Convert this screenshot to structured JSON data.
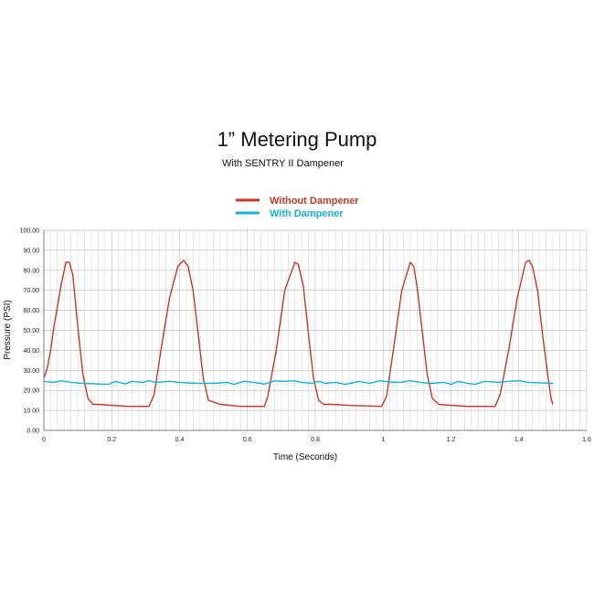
{
  "chart_data": {
    "type": "line",
    "title": "1” Metering Pump",
    "subtitle": "With SENTRY II Dampener",
    "xlabel": "Time (Seconds)",
    "ylabel": "Pressure (PSI)",
    "xlim": [
      0,
      1.6
    ],
    "ylim": [
      0,
      100
    ],
    "x_ticks": [
      "0",
      "0.2",
      "0.4",
      "0.6",
      "0.8",
      "1",
      "1.2",
      "1.4",
      "1.6"
    ],
    "y_ticks": [
      "0.00",
      "10.00",
      "20.00",
      "30.00",
      "40.00",
      "50.00",
      "60.00",
      "70.00",
      "80.00",
      "90.00",
      "100.00"
    ],
    "grid": true,
    "legend_position": "top-center",
    "series": [
      {
        "name": "Without Dampener",
        "color": "#c0392b",
        "x": [
          0,
          0.01,
          0.02,
          0.03,
          0.05,
          0.065,
          0.075,
          0.085,
          0.1,
          0.115,
          0.13,
          0.145,
          0.16,
          0.2,
          0.25,
          0.31,
          0.325,
          0.345,
          0.37,
          0.395,
          0.412,
          0.425,
          0.44,
          0.455,
          0.47,
          0.485,
          0.52,
          0.58,
          0.65,
          0.66,
          0.685,
          0.71,
          0.74,
          0.75,
          0.765,
          0.78,
          0.795,
          0.81,
          0.825,
          0.85,
          0.9,
          0.995,
          1.01,
          1.03,
          1.055,
          1.08,
          1.09,
          1.1,
          1.115,
          1.13,
          1.145,
          1.165,
          1.2,
          1.25,
          1.33,
          1.345,
          1.37,
          1.395,
          1.42,
          1.43,
          1.44,
          1.455,
          1.47,
          1.485,
          1.495,
          1.5
        ],
        "values": [
          26,
          31,
          40,
          52,
          72,
          84,
          84,
          78,
          52,
          28,
          16,
          13,
          13,
          12.5,
          12,
          12,
          18,
          40,
          66,
          82,
          85,
          82,
          70,
          48,
          26,
          15,
          13,
          12,
          12,
          17,
          40,
          70,
          84,
          83,
          72,
          48,
          26,
          15,
          13,
          13,
          12.5,
          12,
          17,
          40,
          70,
          84,
          82,
          72,
          50,
          28,
          16,
          13,
          12.5,
          12,
          12,
          18,
          40,
          66,
          84,
          85,
          82,
          70,
          48,
          28,
          16,
          13
        ]
      },
      {
        "name": "With Dampener",
        "color": "#1ab0d0",
        "x": [
          0,
          0.03,
          0.05,
          0.08,
          0.12,
          0.19,
          0.21,
          0.24,
          0.26,
          0.29,
          0.31,
          0.33,
          0.37,
          0.4,
          0.45,
          0.5,
          0.54,
          0.56,
          0.59,
          0.62,
          0.65,
          0.68,
          0.71,
          0.74,
          0.76,
          0.79,
          0.81,
          0.83,
          0.86,
          0.89,
          0.93,
          0.96,
          0.99,
          1.02,
          1.05,
          1.08,
          1.11,
          1.14,
          1.18,
          1.2,
          1.22,
          1.25,
          1.27,
          1.3,
          1.34,
          1.37,
          1.4,
          1.43,
          1.46,
          1.5
        ],
        "values": [
          24.5,
          24,
          24.8,
          24,
          23.5,
          23,
          24.5,
          23.2,
          24.5,
          24,
          24.8,
          24,
          24.5,
          24,
          23.5,
          23.5,
          24,
          23,
          24.5,
          24,
          23.2,
          24.8,
          24.5,
          24.8,
          24,
          23.5,
          24.5,
          23.5,
          24,
          23,
          24.5,
          23.5,
          24.8,
          24.2,
          24,
          24.8,
          24,
          23.5,
          24,
          23,
          24.5,
          23.5,
          23,
          24.5,
          24,
          24.5,
          24.8,
          24,
          23.8,
          23.5
        ]
      }
    ]
  }
}
